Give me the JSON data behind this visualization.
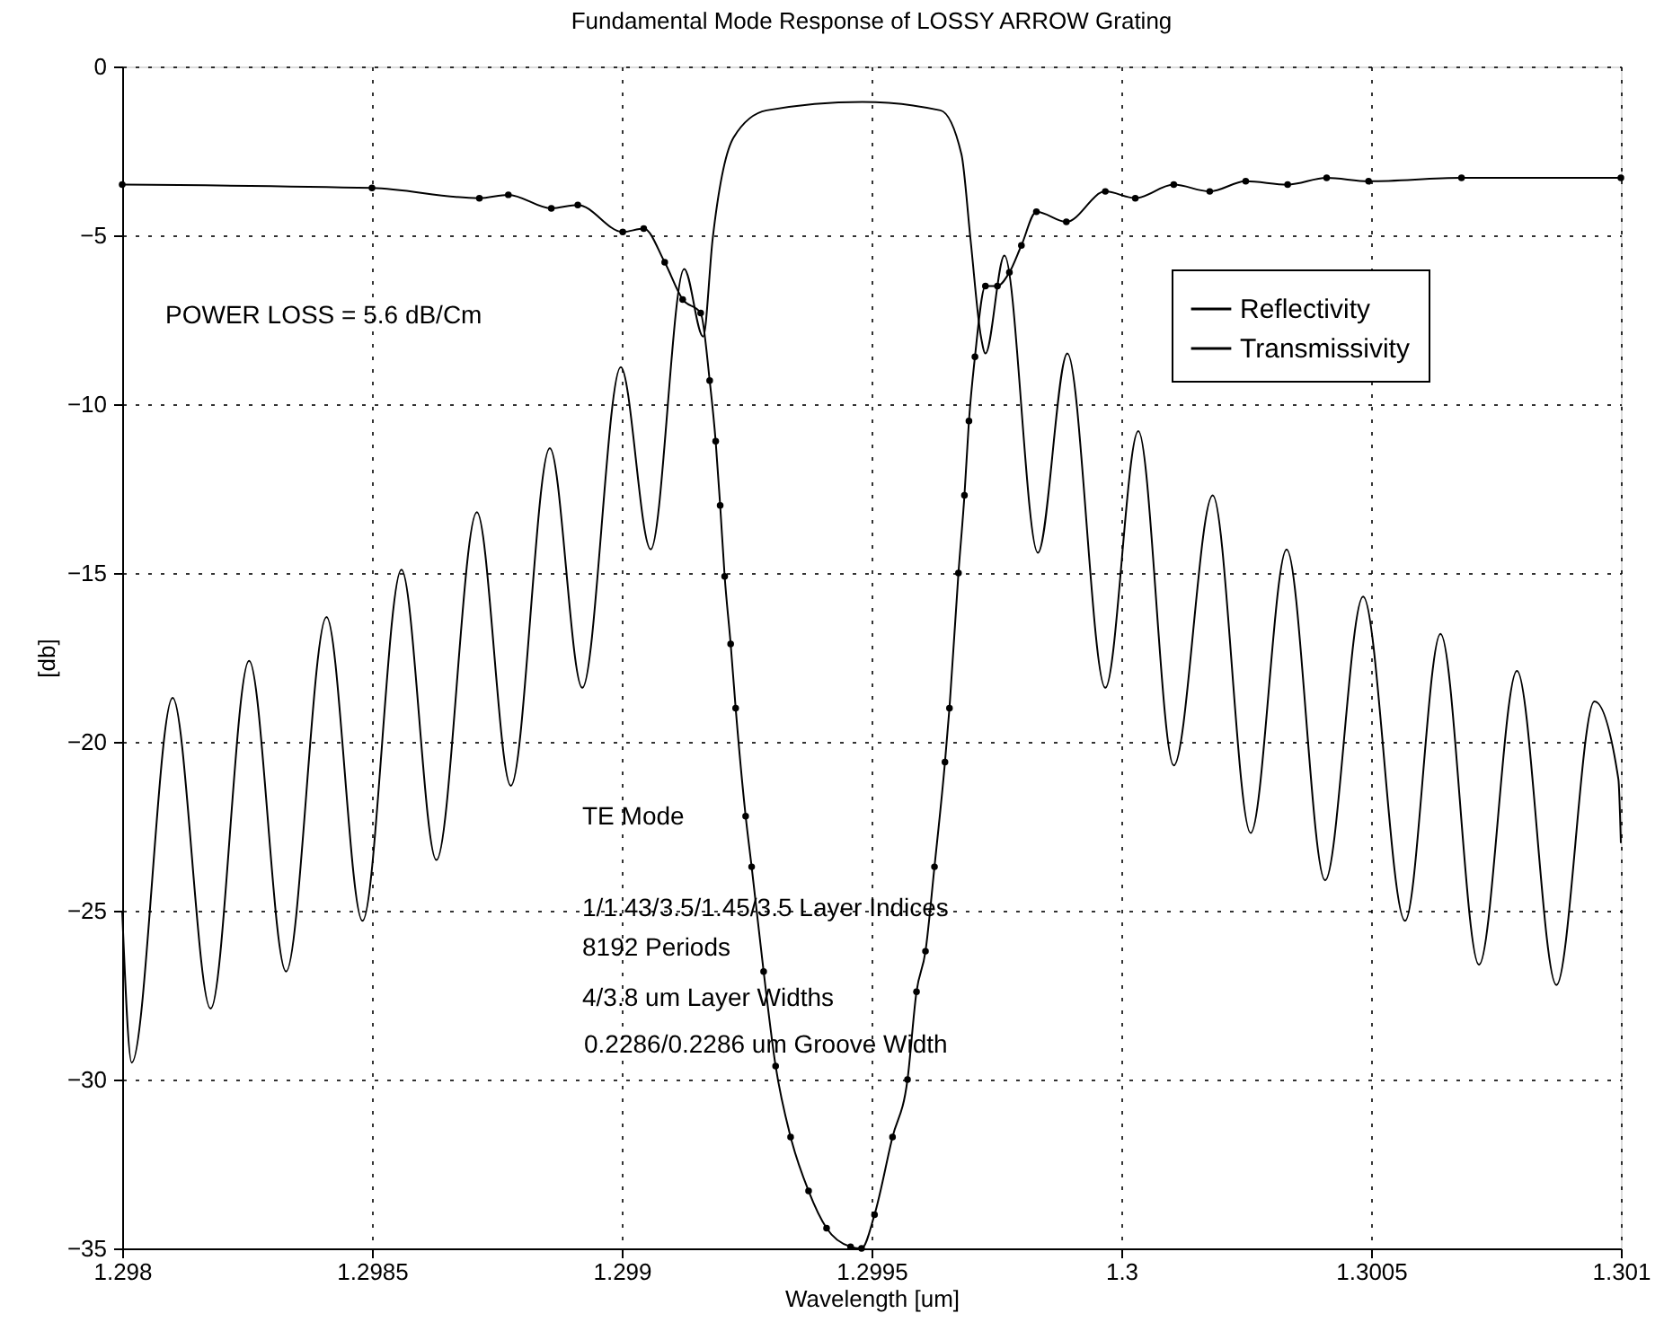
{
  "chart_data": {
    "type": "line",
    "title": "Fundamental Mode Response of LOSSY ARROW Grating",
    "xlabel": "Wavelength  [um]",
    "ylabel": "[db]",
    "xlim": [
      1.298,
      1.301
    ],
    "ylim": [
      -35,
      0
    ],
    "xticks": [
      1.298,
      1.2985,
      1.299,
      1.2995,
      1.3,
      1.3005,
      1.301
    ],
    "yticks": [
      -35,
      -30,
      -25,
      -20,
      -15,
      -10,
      -5,
      0
    ],
    "grid": true,
    "legend": "top right",
    "annotations": [
      "POWER LOSS = 5.6 dB/Cm",
      "TE Mode",
      "1/1.43/3.5/1.45/3.5 Layer Indices",
      "8192 Periods",
      "4/3.8 um Layer Widths",
      "0.2286/0.2286 um Groove Width"
    ],
    "series": [
      {
        "name": "Reflectivity",
        "color": "#000000",
        "marker": "none",
        "line_style": "solid",
        "x": [
          1.298,
          1.298019,
          1.298101,
          1.298177,
          1.298254,
          1.298328,
          1.298409,
          1.298481,
          1.298559,
          1.298629,
          1.29871,
          1.298778,
          1.298856,
          1.298921,
          1.298998,
          1.299058,
          1.299125,
          1.299163,
          1.299182,
          1.299224,
          1.29929,
          1.299482,
          1.299638,
          1.29968,
          1.299698,
          1.299719,
          1.299728,
          1.299766,
          1.299833,
          1.299892,
          1.299968,
          1.300034,
          1.300105,
          1.300183,
          1.300259,
          1.300331,
          1.300408,
          1.300484,
          1.300568,
          1.300639,
          1.300716,
          1.300792,
          1.300871,
          1.300947,
          1.300995,
          1.301
        ],
        "values": [
          -25.0,
          -29.5,
          -18.7,
          -27.9,
          -17.6,
          -26.8,
          -16.3,
          -25.3,
          -14.9,
          -23.5,
          -13.2,
          -21.3,
          -11.3,
          -18.4,
          -8.9,
          -14.3,
          -6.0,
          -8.0,
          -5.1,
          -2.1,
          -1.3,
          -1.05,
          -1.3,
          -2.6,
          -5.1,
          -8.0,
          -8.5,
          -5.6,
          -14.4,
          -8.5,
          -18.4,
          -10.8,
          -20.7,
          -12.7,
          -22.7,
          -14.3,
          -24.1,
          -15.7,
          -25.3,
          -16.8,
          -26.6,
          -17.9,
          -27.2,
          -18.8,
          -21.1,
          -23.0
        ]
      },
      {
        "name": "Transmissivity",
        "color": "#000000",
        "marker": "circle",
        "line_style": "solid",
        "x": [
          1.298,
          1.2985,
          1.298715,
          1.298773,
          1.298859,
          1.298912,
          1.299002,
          1.299044,
          1.299086,
          1.299122,
          1.299158,
          1.299176,
          1.299188,
          1.299197,
          1.299206,
          1.299218,
          1.299228,
          1.299248,
          1.29926,
          1.299284,
          1.299308,
          1.299338,
          1.299374,
          1.29941,
          1.299458,
          1.29948,
          1.299506,
          1.299542,
          1.299572,
          1.29959,
          1.299608,
          1.299626,
          1.299647,
          1.299656,
          1.299674,
          1.299686,
          1.299695,
          1.299707,
          1.299728,
          1.299752,
          1.299776,
          1.2998,
          1.29983,
          1.29989,
          1.299968,
          1.300028,
          1.300105,
          1.300177,
          1.300249,
          1.300333,
          1.300411,
          1.300495,
          1.300681,
          1.301
        ],
        "values": [
          -3.5,
          -3.6,
          -3.9,
          -3.8,
          -4.2,
          -4.1,
          -4.9,
          -4.8,
          -5.8,
          -6.9,
          -7.3,
          -9.3,
          -11.1,
          -13.0,
          -15.1,
          -17.1,
          -19.0,
          -22.2,
          -23.7,
          -26.8,
          -29.6,
          -31.7,
          -33.3,
          -34.4,
          -34.95,
          -35.0,
          -34.0,
          -31.7,
          -30.0,
          -27.4,
          -26.2,
          -23.7,
          -20.6,
          -19.0,
          -15.0,
          -12.7,
          -10.5,
          -8.6,
          -6.5,
          -6.5,
          -6.1,
          -5.3,
          -4.3,
          -4.6,
          -3.7,
          -3.9,
          -3.5,
          -3.7,
          -3.4,
          -3.5,
          -3.3,
          -3.4,
          -3.3,
          -3.3
        ]
      }
    ]
  }
}
